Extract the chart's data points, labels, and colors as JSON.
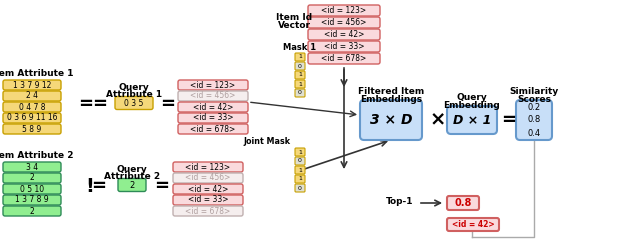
{
  "bg_color": "#ffffff",
  "item_attr1_rows": [
    "1 3 7 9 12",
    "2 4",
    "0 4 7 8",
    "0 3 6 9 11 16",
    "5 8 9"
  ],
  "item_attr1_color": "#f5d87a",
  "item_attr1_border": "#c8a000",
  "query_attr1_text": "0 3 5",
  "query_attr1_color": "#f5d87a",
  "query_attr1_border": "#c8a000",
  "item_id_rows": [
    "<id = 123>",
    "<id = 456>",
    "<id = 42>",
    "<id = 33>",
    "<id = 678>"
  ],
  "item_id_color": "#fadadd",
  "item_id_border": "#d06060",
  "mask1_values": [
    "1",
    "0",
    "1",
    "1",
    "0"
  ],
  "mask1_color": "#f5d87a",
  "mask1_border": "#c8a000",
  "item_attr2_rows": [
    "3 4",
    "2",
    "0 5 10",
    "1 3 7 8 9",
    "2"
  ],
  "item_attr2_color": "#90ee90",
  "item_attr2_border": "#2e8b57",
  "query_attr2_text": "2",
  "query_attr2_color": "#90ee90",
  "query_attr2_border": "#2e8b57",
  "joint_mask_values": [
    "1",
    "0",
    "1",
    "1",
    "0"
  ],
  "joint_mask_color": "#f5d87a",
  "joint_mask_border": "#c8a000",
  "filtered_embed_color": "#c8dff8",
  "filtered_embed_border": "#6699cc",
  "filtered_embed_text": "3 × D",
  "query_embed_color": "#c8dff8",
  "query_embed_border": "#6699cc",
  "query_embed_text": "D × 1",
  "similarity_color": "#c8dff8",
  "similarity_border": "#6699cc",
  "similarity_values": [
    "0.2",
    "0.8",
    "0.4"
  ],
  "top1_score": "0.8",
  "top1_id": "<id = 42>",
  "top1_color": "#fadadd",
  "top1_border": "#d06060",
  "top1_text_color": "#cc0000",
  "gray_text": "#b0a0a0",
  "gray_border": "#c0b0b0",
  "gray_fill": "#f5eeee"
}
